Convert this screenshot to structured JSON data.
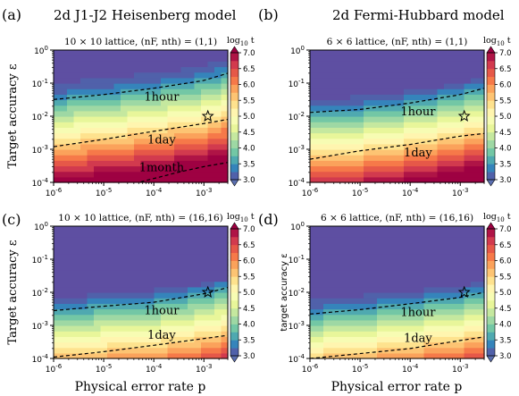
{
  "figure": {
    "x_axis_title": "Physical error rate p",
    "y_axis_title": "Target accuracy ε",
    "y_axis_title_small": "target accuracy ε",
    "row_titles": [
      "2d J1-J2 Heisenberg model",
      "2d Fermi-Hubbard model"
    ]
  },
  "chart_data": [
    {
      "type": "heatmap",
      "panel": "(a)",
      "title": "2d J1-J2 Heisenberg model",
      "subtitle": "10 × 10 lattice, (nF, nth) = (1,1)",
      "xlabel": "",
      "ylabel": "Target accuracy ε",
      "xscale": "log",
      "yscale": "log",
      "xlim": [
        1e-06,
        0.003
      ],
      "ylim": [
        0.0001,
        1
      ],
      "colorbar": {
        "label": "log10 t",
        "min": 3.0,
        "max": 7.0,
        "ticks": [
          "3.0",
          "3.5",
          "4.0",
          "4.5",
          "5.0",
          "5.5",
          "6.0",
          "6.5",
          "7.0"
        ]
      },
      "contours": [
        {
          "label": "1hour",
          "log10_t": 3.56,
          "points": [
            [
              1e-06,
              0.032
            ],
            [
              1e-05,
              0.045
            ],
            [
              0.0001,
              0.07
            ],
            [
              0.001,
              0.12
            ],
            [
              0.003,
              0.2
            ]
          ]
        },
        {
          "label": "1day",
          "log10_t": 4.94,
          "points": [
            [
              1e-06,
              0.0012
            ],
            [
              1e-05,
              0.002
            ],
            [
              0.0001,
              0.0035
            ],
            [
              0.001,
              0.006
            ],
            [
              0.003,
              0.008
            ]
          ]
        },
        {
          "label": "1month",
          "log10_t": 6.41,
          "points": [
            [
              5e-05,
              0.0001
            ],
            [
              0.0003,
              0.0002
            ],
            [
              0.001,
              0.0003
            ],
            [
              0.003,
              0.0004
            ]
          ]
        }
      ],
      "surface_threshold": [
        [
          1e-06,
          0.1
        ],
        [
          1e-05,
          0.14
        ],
        [
          0.0001,
          0.2
        ],
        [
          0.001,
          0.35
        ],
        [
          0.003,
          0.5
        ]
      ],
      "surface_slope": 1.45,
      "marker": {
        "shape": "star",
        "x": 0.0012,
        "y": 0.01
      }
    },
    {
      "type": "heatmap",
      "panel": "(b)",
      "title": "2d Fermi-Hubbard model",
      "subtitle": "6 × 6 lattice, (nF, nth) = (1,1)",
      "xlabel": "",
      "ylabel": "",
      "xscale": "log",
      "yscale": "log",
      "xlim": [
        1e-06,
        0.003
      ],
      "ylim": [
        0.0001,
        1
      ],
      "colorbar": {
        "label": "log10 t",
        "min": 3.0,
        "max": 7.0,
        "ticks": [
          "3.0",
          "3.5",
          "4.0",
          "4.5",
          "5.0",
          "5.5",
          "6.0",
          "6.5",
          "7.0"
        ]
      },
      "contours": [
        {
          "label": "1hour",
          "log10_t": 3.56,
          "points": [
            [
              1e-06,
              0.013
            ],
            [
              1e-05,
              0.016
            ],
            [
              0.0001,
              0.025
            ],
            [
              0.001,
              0.045
            ],
            [
              0.003,
              0.07
            ]
          ]
        },
        {
          "label": "1day",
          "log10_t": 4.94,
          "points": [
            [
              1e-06,
              0.0005
            ],
            [
              1e-05,
              0.0009
            ],
            [
              0.0001,
              0.0014
            ],
            [
              0.001,
              0.0025
            ],
            [
              0.003,
              0.003
            ]
          ]
        }
      ],
      "surface_threshold": [
        [
          1e-06,
          0.03
        ],
        [
          1e-05,
          0.04
        ],
        [
          0.0001,
          0.06
        ],
        [
          0.001,
          0.1
        ],
        [
          0.003,
          0.15
        ]
      ],
      "surface_slope": 1.5,
      "marker": {
        "shape": "star",
        "x": 0.0012,
        "y": 0.01
      }
    },
    {
      "type": "heatmap",
      "panel": "(c)",
      "title": "",
      "subtitle": "10 × 10 lattice, (nF, nth) = (16,16)",
      "xlabel": "Physical error rate p",
      "ylabel": "Target accuracy ε",
      "xscale": "log",
      "yscale": "log",
      "xlim": [
        1e-06,
        0.003
      ],
      "ylim": [
        0.0001,
        1
      ],
      "colorbar": {
        "label": "log10 t",
        "min": 3.0,
        "max": 7.0,
        "ticks": [
          "3.0",
          "3.5",
          "4.0",
          "4.5",
          "5.0",
          "5.5",
          "6.0",
          "6.5",
          "7.0"
        ]
      },
      "contours": [
        {
          "label": "1hour",
          "log10_t": 3.56,
          "points": [
            [
              1e-06,
              0.0028
            ],
            [
              1e-05,
              0.0038
            ],
            [
              0.0001,
              0.005
            ],
            [
              0.001,
              0.009
            ],
            [
              0.003,
              0.014
            ]
          ]
        },
        {
          "label": "1day",
          "log10_t": 4.94,
          "points": [
            [
              1e-06,
              0.00011
            ],
            [
              1e-05,
              0.00016
            ],
            [
              0.0001,
              0.00025
            ],
            [
              0.001,
              0.0004
            ],
            [
              0.003,
              0.0005
            ]
          ]
        }
      ],
      "surface_threshold": [
        [
          1e-06,
          0.007
        ],
        [
          1e-05,
          0.009
        ],
        [
          0.0001,
          0.012
        ],
        [
          0.001,
          0.018
        ],
        [
          0.003,
          0.022
        ]
      ],
      "surface_slope": 1.45,
      "marker": {
        "shape": "star",
        "x": 0.0012,
        "y": 0.01
      }
    },
    {
      "type": "heatmap",
      "panel": "(d)",
      "title": "",
      "subtitle": "6 × 6 lattice, (nF, nth) = (16,16)",
      "xlabel": "Physical error rate p",
      "ylabel": "target accuracy ε",
      "xscale": "log",
      "yscale": "log",
      "xlim": [
        1e-06,
        0.003
      ],
      "ylim": [
        0.0001,
        1
      ],
      "colorbar": {
        "label": "log10 t",
        "min": 3.0,
        "max": 7.0,
        "ticks": [
          "3.0",
          "3.5",
          "4.0",
          "4.5",
          "5.0",
          "5.5",
          "6.0",
          "6.5",
          "7.0"
        ]
      },
      "contours": [
        {
          "label": "1hour",
          "log10_t": 3.56,
          "points": [
            [
              1e-06,
              0.0022
            ],
            [
              1e-05,
              0.003
            ],
            [
              0.0001,
              0.0045
            ],
            [
              0.001,
              0.007
            ],
            [
              0.003,
              0.01
            ]
          ]
        },
        {
          "label": "1day",
          "log10_t": 4.94,
          "points": [
            [
              1e-06,
              0.0001
            ],
            [
              1e-05,
              0.00014
            ],
            [
              0.0001,
              0.0002
            ],
            [
              0.001,
              0.00035
            ],
            [
              0.003,
              0.00045
            ]
          ]
        }
      ],
      "surface_threshold": [
        [
          1e-06,
          0.006
        ],
        [
          1e-05,
          0.008
        ],
        [
          0.0001,
          0.011
        ],
        [
          0.001,
          0.016
        ],
        [
          0.003,
          0.02
        ]
      ],
      "surface_slope": 1.5,
      "marker": {
        "shape": "star",
        "x": 0.0012,
        "y": 0.01
      }
    }
  ],
  "colors": {
    "spectral": [
      "#5e4fa2",
      "#3288bd",
      "#66c2a5",
      "#abdda4",
      "#e6f598",
      "#ffffbf",
      "#fee08b",
      "#fdae61",
      "#f46d43",
      "#d53e4f",
      "#9e0142"
    ],
    "plateau": "#5e4fa2",
    "contour": "#000000"
  }
}
